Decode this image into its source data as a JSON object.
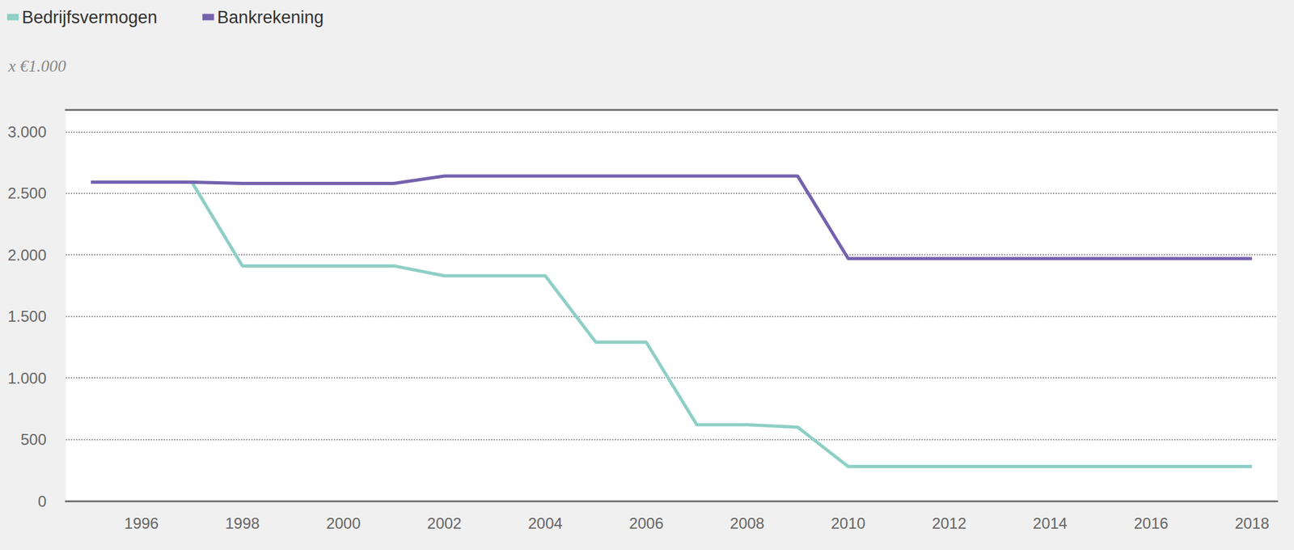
{
  "chart_data": {
    "type": "line",
    "ylabel": "x €1.000",
    "x": [
      1995,
      1996,
      1997,
      1998,
      1999,
      2000,
      2001,
      2002,
      2003,
      2004,
      2005,
      2006,
      2007,
      2008,
      2009,
      2010,
      2011,
      2012,
      2013,
      2014,
      2015,
      2016,
      2017,
      2018
    ],
    "series": [
      {
        "name": "Bedrijfsvermogen",
        "color": "#8ecfc6",
        "values": [
          2590,
          2590,
          2590,
          1910,
          1910,
          1910,
          1910,
          1830,
          1830,
          1830,
          1290,
          1290,
          620,
          620,
          600,
          280,
          280,
          280,
          280,
          280,
          280,
          280,
          280,
          280
        ]
      },
      {
        "name": "Bankrekening",
        "color": "#7462ae",
        "values": [
          2590,
          2590,
          2590,
          2580,
          2580,
          2580,
          2580,
          2640,
          2640,
          2640,
          2640,
          2640,
          2640,
          2640,
          2640,
          1970,
          1970,
          1970,
          1970,
          1970,
          1970,
          1970,
          1970,
          1970
        ]
      }
    ],
    "xlim": [
      1994.5,
      2018.5
    ],
    "xticks": [
      {
        "value": 1996,
        "label": "1996"
      },
      {
        "value": 1998,
        "label": "1998"
      },
      {
        "value": 2000,
        "label": "2000"
      },
      {
        "value": 2002,
        "label": "2002"
      },
      {
        "value": 2004,
        "label": "2004"
      },
      {
        "value": 2006,
        "label": "2006"
      },
      {
        "value": 2008,
        "label": "2008"
      },
      {
        "value": 2010,
        "label": "2010"
      },
      {
        "value": 2012,
        "label": "2012"
      },
      {
        "value": 2014,
        "label": "2014"
      },
      {
        "value": 2016,
        "label": "2016"
      },
      {
        "value": 2018,
        "label": "2018"
      }
    ],
    "ylim": [
      0,
      3180
    ],
    "yticks": [
      0,
      500,
      {
        "value": 1000,
        "label": "1.000"
      },
      {
        "value": 1500,
        "label": "1.500"
      },
      {
        "value": 2000,
        "label": "2.000"
      },
      {
        "value": 2500,
        "label": "2.500"
      },
      {
        "value": 3000,
        "label": "3.000"
      }
    ],
    "grid": true,
    "legend": "top-left"
  }
}
